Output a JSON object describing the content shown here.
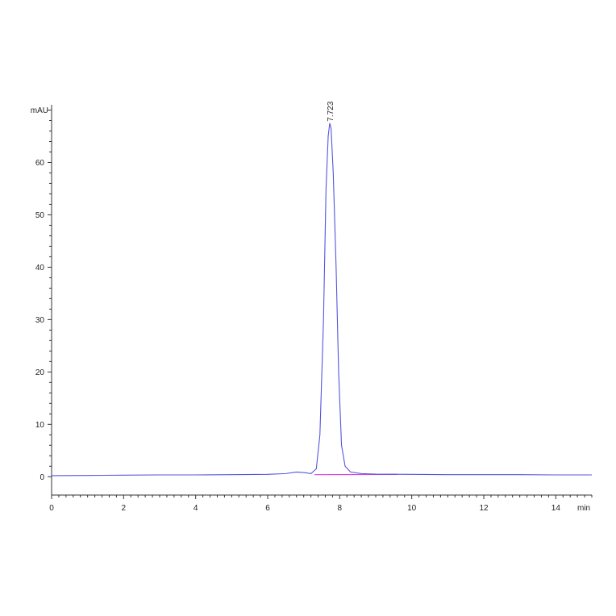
{
  "chart_data": {
    "type": "line",
    "xlabel": "min",
    "ylabel": "mAU",
    "xlim": [
      0,
      15
    ],
    "ylim": [
      -3.5,
      71
    ],
    "x_ticks": [
      0,
      2,
      4,
      6,
      8,
      10,
      12,
      14
    ],
    "y_ticks": [
      0,
      10,
      20,
      30,
      40,
      50,
      60
    ],
    "grid": false,
    "series": [
      {
        "color": "#5555dd",
        "points": [
          [
            0.0,
            0.2
          ],
          [
            1.0,
            0.25
          ],
          [
            2.0,
            0.3
          ],
          [
            3.0,
            0.35
          ],
          [
            4.0,
            0.35
          ],
          [
            5.0,
            0.4
          ],
          [
            6.0,
            0.45
          ],
          [
            6.5,
            0.6
          ],
          [
            6.8,
            0.9
          ],
          [
            7.0,
            0.8
          ],
          [
            7.2,
            0.6
          ],
          [
            7.35,
            1.5
          ],
          [
            7.45,
            8.0
          ],
          [
            7.55,
            30.0
          ],
          [
            7.62,
            55.0
          ],
          [
            7.68,
            65.0
          ],
          [
            7.723,
            67.5
          ],
          [
            7.76,
            66.5
          ],
          [
            7.82,
            58.0
          ],
          [
            7.9,
            40.0
          ],
          [
            7.97,
            20.0
          ],
          [
            8.05,
            6.0
          ],
          [
            8.15,
            2.0
          ],
          [
            8.3,
            0.9
          ],
          [
            8.6,
            0.6
          ],
          [
            9.0,
            0.5
          ],
          [
            10.0,
            0.45
          ],
          [
            11.0,
            0.4
          ],
          [
            12.0,
            0.4
          ],
          [
            13.0,
            0.4
          ],
          [
            14.0,
            0.35
          ],
          [
            15.0,
            0.35
          ]
        ]
      }
    ],
    "baseline": {
      "color": "#e040e0",
      "points": [
        [
          7.3,
          0.4
        ],
        [
          9.6,
          0.45
        ]
      ]
    },
    "annotations": [
      {
        "x": 7.723,
        "y": 67.5,
        "text": "7.723"
      }
    ]
  }
}
